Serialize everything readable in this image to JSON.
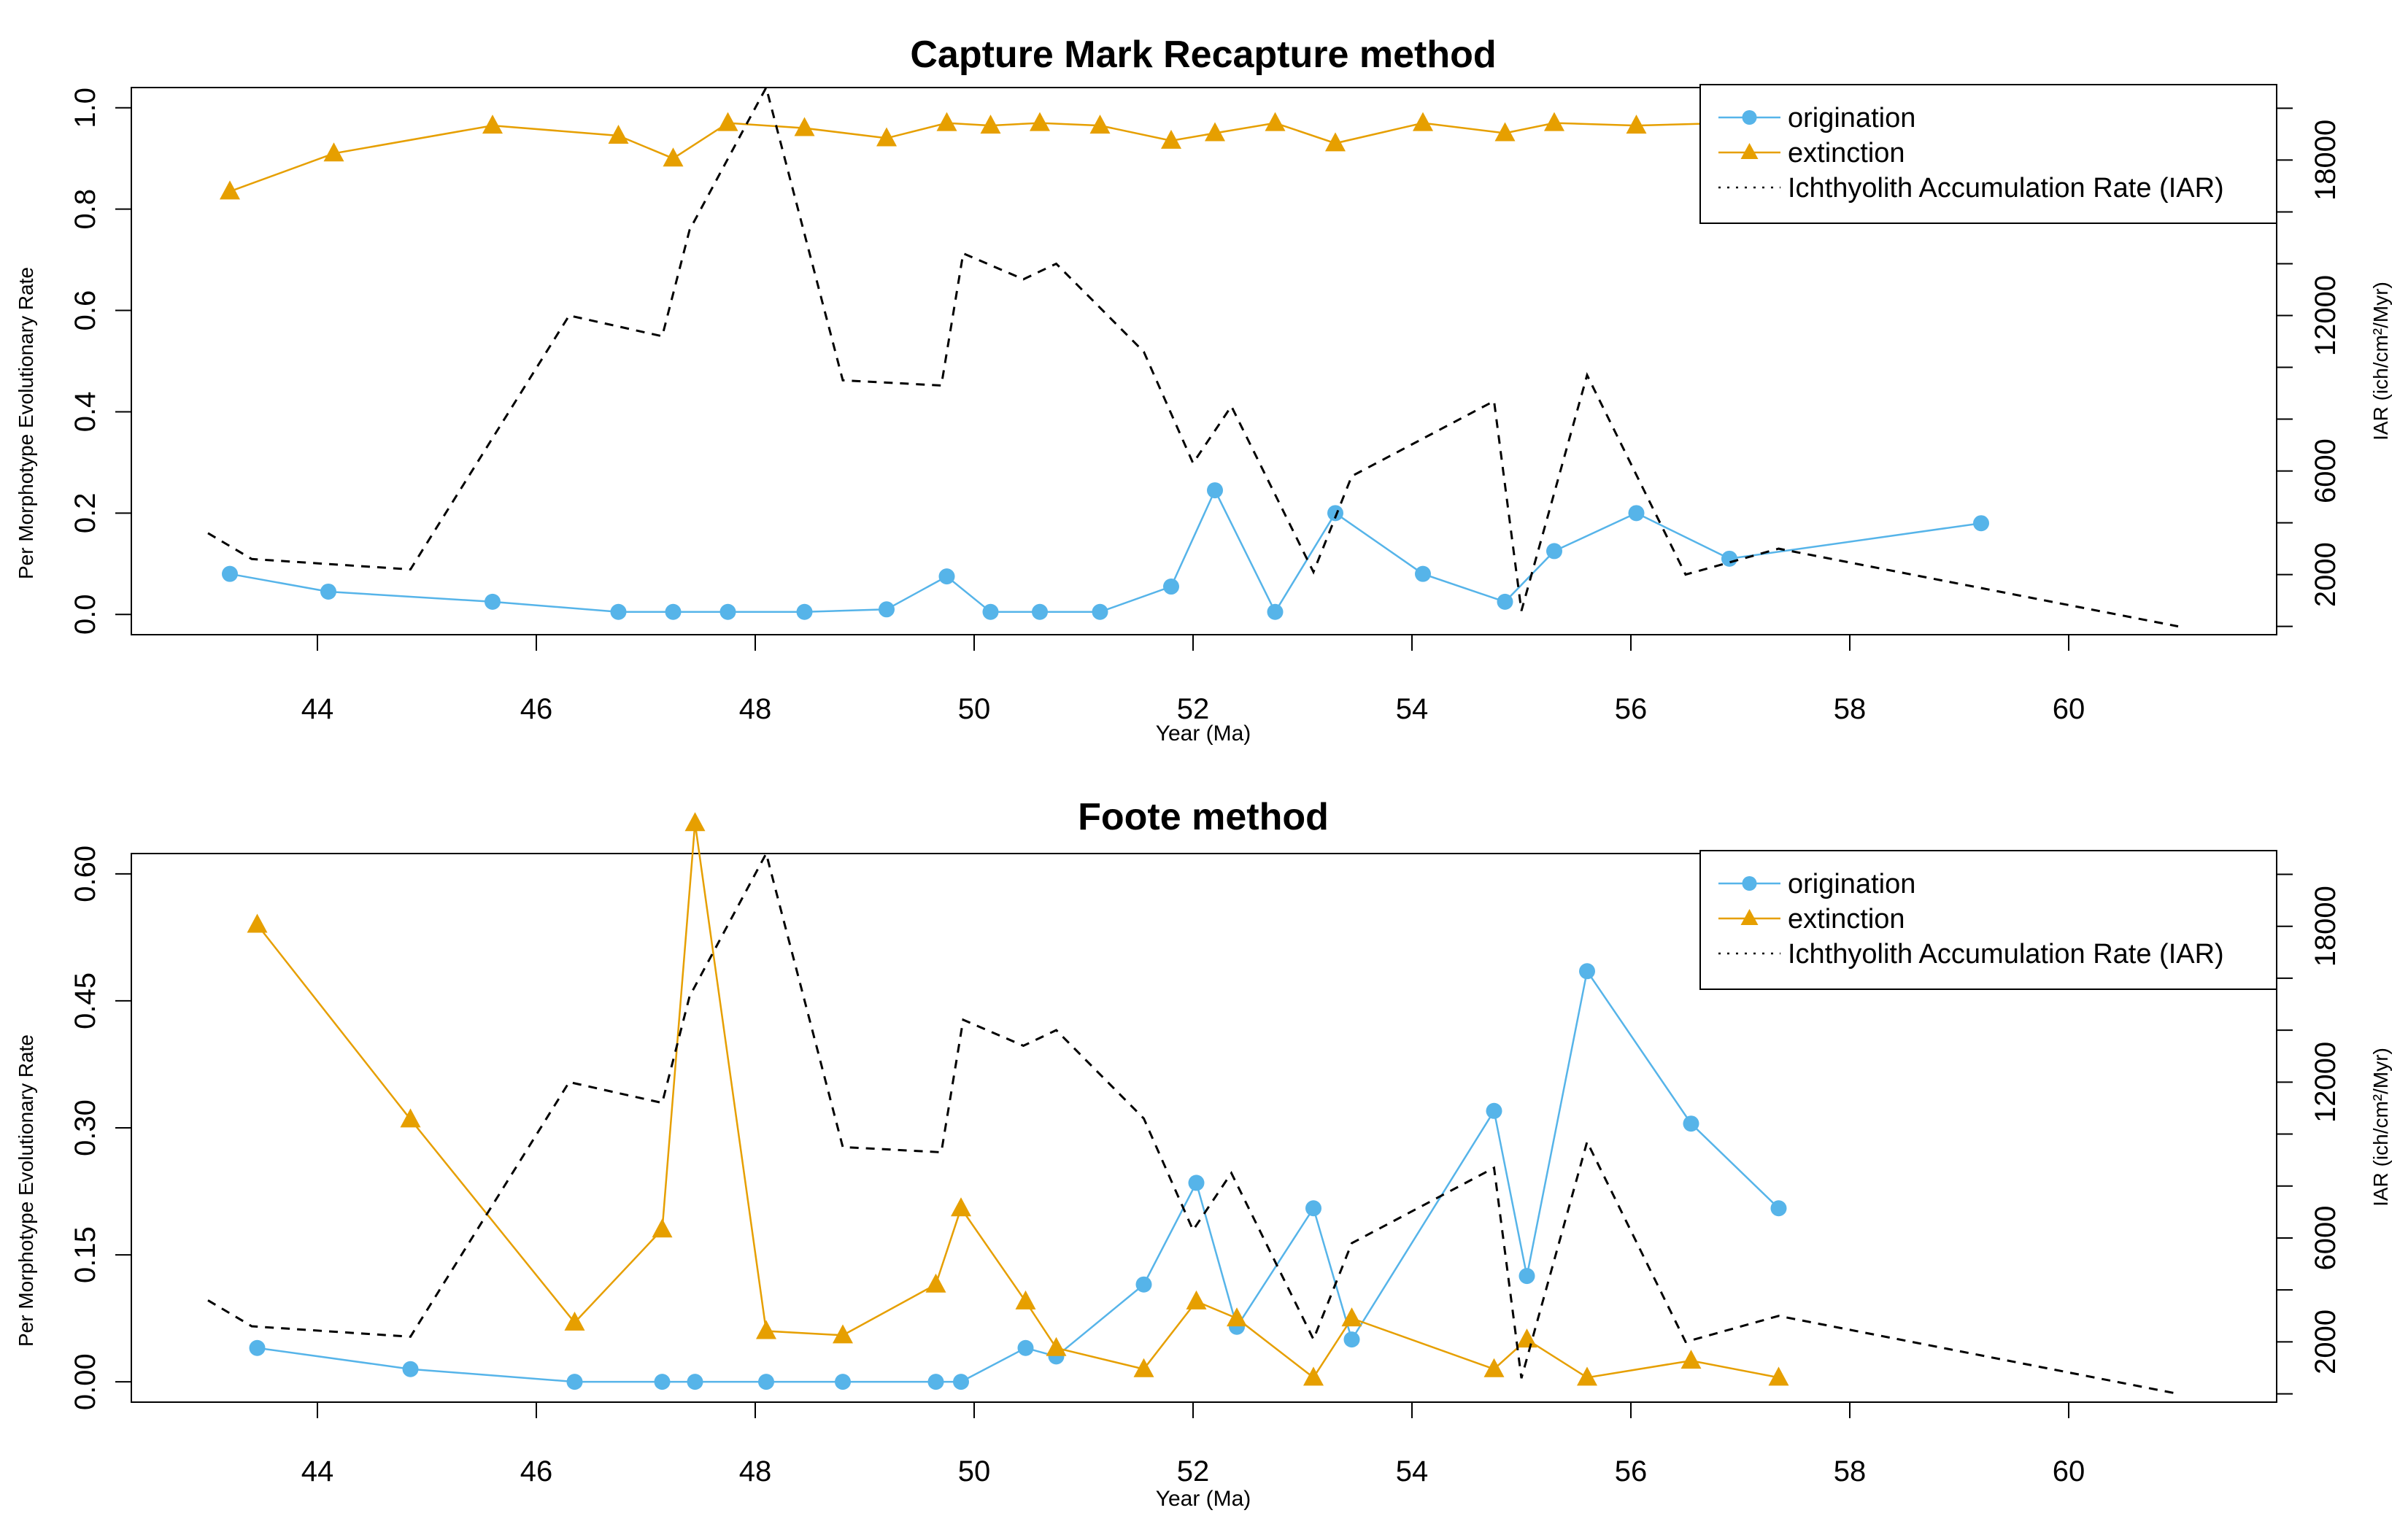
{
  "colors": {
    "origination": "#56B4E9",
    "extinction": "#E69F00",
    "iar": "#000000"
  },
  "chart_data": [
    {
      "type": "line",
      "title": "Capture Mark Recapture method",
      "xlabel": "Year (Ma)",
      "ylabel": "Per Morphotype Evolutionary Rate",
      "ylabel_right": "IAR (ich/cm²/Myr)",
      "xlim": [
        42.3,
        61.9
      ],
      "ylim": [
        -0.04,
        1.04
      ],
      "ylim_right": [
        -320,
        20800
      ],
      "x_ticks": [
        "44",
        "46",
        "48",
        "50",
        "52",
        "54",
        "56",
        "58",
        "60"
      ],
      "y_ticks": [
        "0.0",
        "0.2",
        "0.4",
        "0.6",
        "0.8",
        "1.0"
      ],
      "y_ticks_right": [
        "2000",
        "6000",
        "12000",
        "18000"
      ],
      "grid": false,
      "legend_position": "top-right",
      "legend": [
        "origination",
        "extinction",
        "Ichthyolith Accumulation Rate (IAR)"
      ],
      "series": [
        {
          "name": "origination",
          "axis": "left",
          "marker": "circle",
          "x": [
            43.2,
            44.1,
            45.6,
            46.75,
            47.25,
            47.75,
            48.45,
            49.2,
            49.75,
            50.15,
            50.6,
            51.15,
            51.8,
            52.2,
            52.75,
            53.3,
            54.1,
            54.85,
            55.3,
            56.05,
            56.9,
            59.2
          ],
          "y": [
            0.08,
            0.045,
            0.025,
            0.005,
            0.005,
            0.005,
            0.005,
            0.01,
            0.075,
            0.005,
            0.005,
            0.005,
            0.055,
            0.245,
            0.005,
            0.2,
            0.08,
            0.025,
            0.125,
            0.2,
            0.11,
            0.18
          ]
        },
        {
          "name": "extinction",
          "axis": "left",
          "marker": "triangle",
          "x": [
            43.2,
            44.15,
            45.6,
            46.75,
            47.25,
            47.75,
            48.45,
            49.2,
            49.75,
            50.15,
            50.6,
            51.15,
            51.8,
            52.2,
            52.75,
            53.3,
            54.1,
            54.85,
            55.3,
            56.05,
            56.9
          ],
          "y": [
            0.835,
            0.91,
            0.965,
            0.945,
            0.9,
            0.97,
            0.96,
            0.94,
            0.97,
            0.965,
            0.97,
            0.965,
            0.935,
            0.95,
            0.97,
            0.93,
            0.97,
            0.95,
            0.97,
            0.965,
            0.97
          ]
        },
        {
          "name": "Ichthyolith Accumulation Rate (IAR)",
          "axis": "right",
          "style": "dashed",
          "x": [
            43.0,
            43.4,
            44.85,
            46.3,
            47.15,
            47.4,
            48.1,
            48.8,
            49.7,
            49.9,
            50.45,
            50.75,
            51.55,
            52.0,
            52.35,
            53.1,
            53.45,
            54.75,
            55.0,
            55.6,
            56.5,
            57.35,
            61.0
          ],
          "y": [
            3600,
            2600,
            2200,
            12000,
            11200,
            15300,
            20800,
            9500,
            9300,
            14400,
            13400,
            14000,
            10600,
            6300,
            8500,
            2100,
            5800,
            8700,
            600,
            9700,
            2000,
            3000,
            0
          ]
        }
      ]
    },
    {
      "type": "line",
      "title": "Foote method",
      "xlabel": "Year (Ma)",
      "ylabel": "Per Morphotype Evolutionary Rate",
      "ylabel_right": "IAR (ich/cm²/Myr)",
      "xlim": [
        42.3,
        61.9
      ],
      "ylim": [
        -0.024,
        0.624
      ],
      "ylim_right": [
        -320,
        20800
      ],
      "x_ticks": [
        "44",
        "46",
        "48",
        "50",
        "52",
        "54",
        "56",
        "58",
        "60"
      ],
      "y_ticks": [
        "0.00",
        "0.15",
        "0.30",
        "0.45",
        "0.60"
      ],
      "y_ticks_right": [
        "2000",
        "6000",
        "12000",
        "18000"
      ],
      "grid": false,
      "legend_position": "top-right",
      "legend": [
        "origination",
        "extinction",
        "Ichthyolith Accumulation Rate (IAR)"
      ],
      "series": [
        {
          "name": "origination",
          "axis": "left",
          "marker": "circle",
          "x": [
            43.45,
            44.85,
            46.35,
            47.15,
            47.45,
            48.1,
            48.8,
            49.65,
            49.88,
            50.47,
            50.75,
            51.55,
            52.03,
            52.4,
            53.1,
            53.45,
            54.75,
            55.05,
            55.6,
            56.55,
            57.35
          ],
          "y": [
            0.04,
            0.015,
            0.0,
            0.0,
            0.0,
            0.0,
            0.0,
            0.0,
            0.0,
            0.04,
            0.03,
            0.115,
            0.235,
            0.065,
            0.205,
            0.05,
            0.32,
            0.125,
            0.485,
            0.305,
            0.205
          ]
        },
        {
          "name": "extinction",
          "axis": "left",
          "marker": "triangle",
          "x": [
            43.45,
            44.85,
            46.35,
            47.15,
            47.45,
            48.1,
            48.8,
            49.65,
            49.88,
            50.47,
            50.75,
            51.55,
            52.03,
            52.4,
            53.1,
            53.45,
            54.75,
            55.05,
            55.6,
            56.55,
            57.35
          ],
          "y": [
            0.54,
            0.31,
            0.07,
            0.18,
            0.66,
            0.06,
            0.055,
            0.115,
            0.205,
            0.095,
            0.04,
            0.015,
            0.095,
            0.075,
            0.005,
            0.075,
            0.015,
            0.05,
            0.005,
            0.025,
            0.005
          ]
        },
        {
          "name": "Ichthyolith Accumulation Rate (IAR)",
          "axis": "right",
          "style": "dashed",
          "x": [
            43.0,
            43.4,
            44.85,
            46.3,
            47.15,
            47.4,
            48.1,
            48.8,
            49.7,
            49.9,
            50.45,
            50.75,
            51.55,
            52.0,
            52.35,
            53.1,
            53.45,
            54.75,
            55.0,
            55.6,
            56.5,
            57.35,
            61.0
          ],
          "y": [
            3600,
            2600,
            2200,
            12000,
            11200,
            15300,
            20800,
            9500,
            9300,
            14400,
            13400,
            14000,
            10600,
            6300,
            8500,
            2100,
            5800,
            8700,
            600,
            9700,
            2000,
            3000,
            0
          ]
        }
      ]
    }
  ]
}
